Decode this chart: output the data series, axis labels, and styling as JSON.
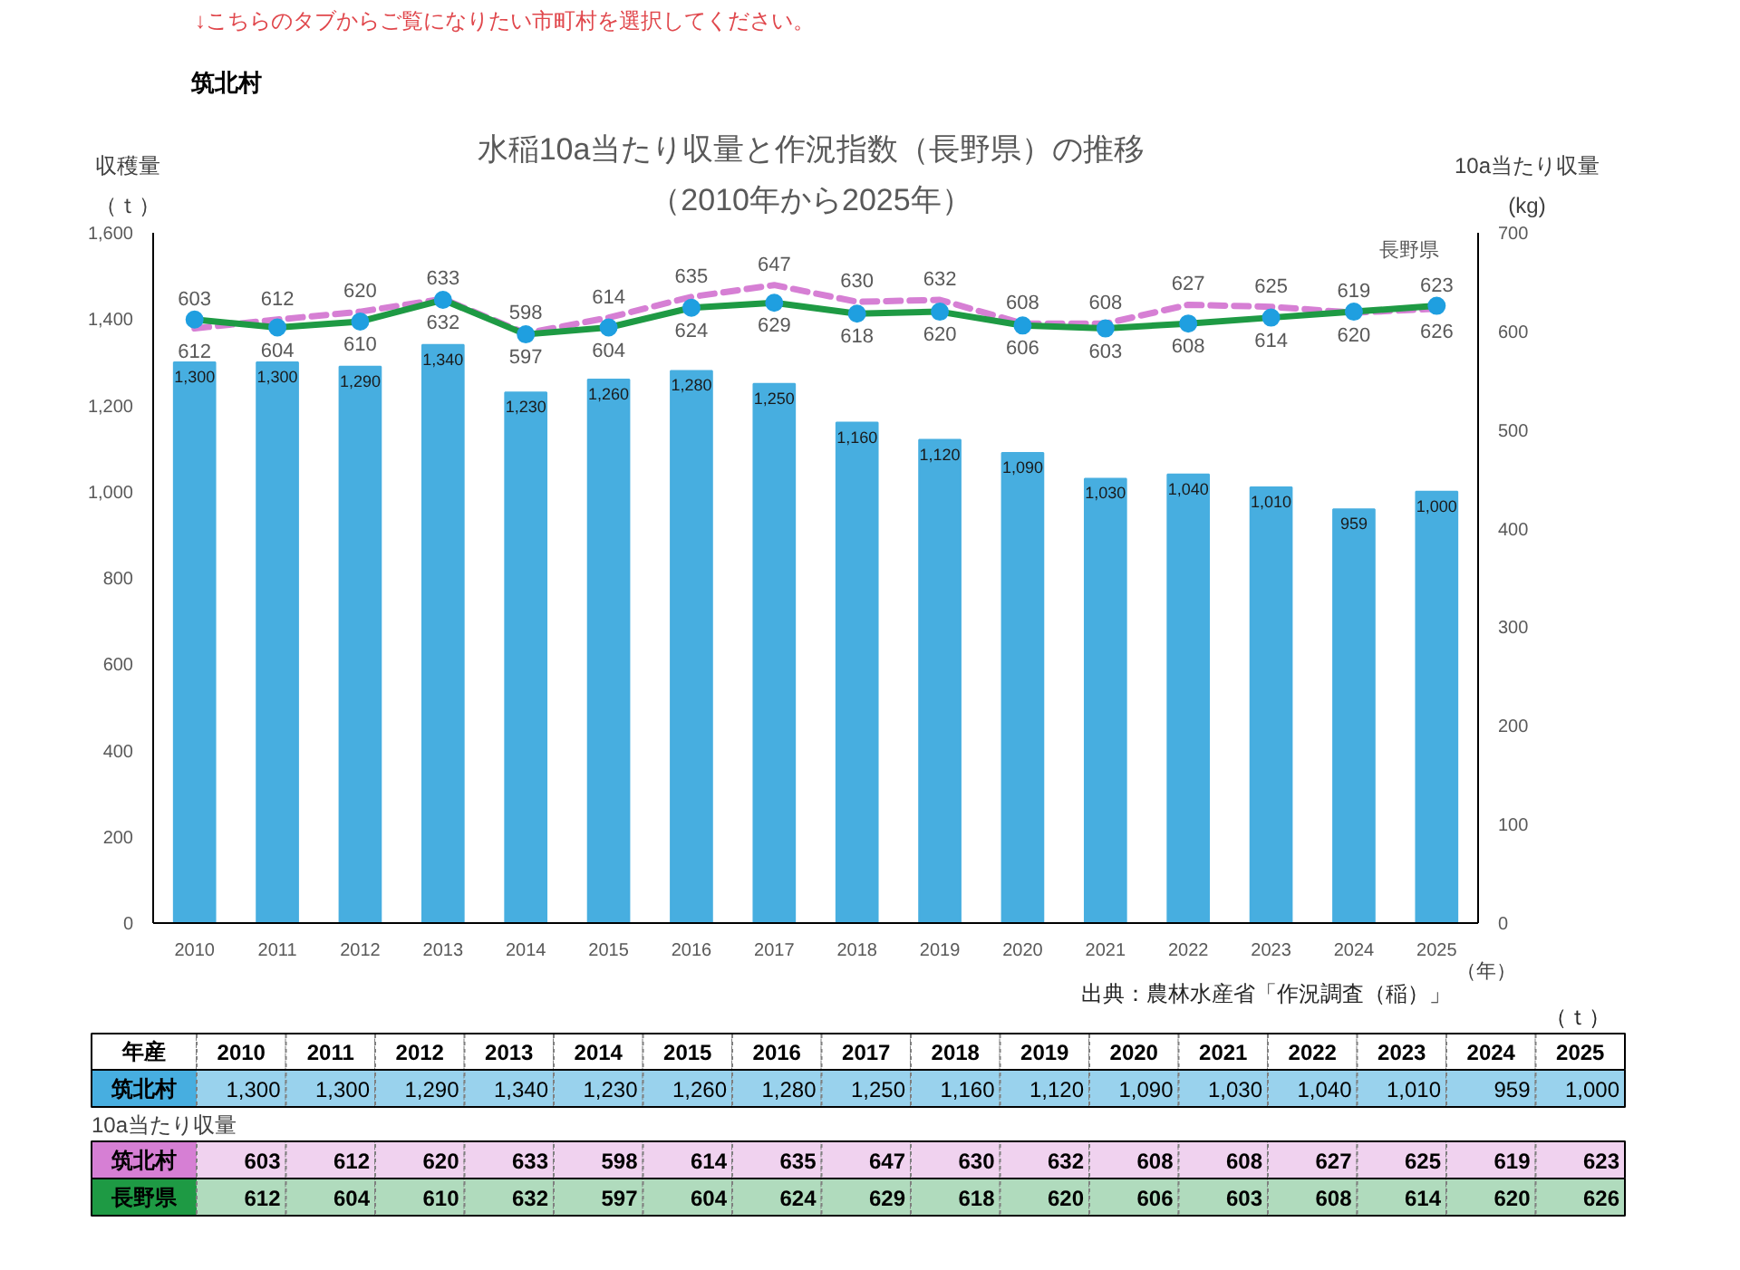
{
  "chart_data": {
    "type": "bar",
    "title": "水稲10a当たり収量と作況指数（長野県）の推移",
    "subtitle": "（2010年から2025年）",
    "xlabel": "（年）",
    "ylabel": "収穫量（ｔ）",
    "y2label": "10a当たり収量\n(kg)",
    "annotations": [
      "↓こちらのタブからご覧になりたい市町村を選択してください。",
      "筑北村",
      "出典：農林水産省「作況調査（稲）」",
      "（ｔ）",
      "年産",
      "10a当たり収量",
      "長野県"
    ],
    "categories": [
      "2010",
      "2011",
      "2012",
      "2013",
      "2014",
      "2015",
      "2016",
      "2017",
      "2018",
      "2019",
      "2020",
      "2021",
      "2022",
      "2023",
      "2024",
      "2025"
    ],
    "series": [
      {
        "name": "筑北村",
        "color": "#47aee0",
        "values": [
          1300,
          1300,
          1290,
          1340,
          1230,
          1260,
          1280,
          1250,
          1160,
          1120,
          1090,
          1030,
          1040,
          1010,
          959,
          1000
        ],
        "value_labels": [
          "1,300",
          "1,300",
          "1,290",
          "1,340",
          "1,230",
          "1,260",
          "1,280",
          "1,250",
          "1,160",
          "1,120",
          "1,090",
          "1,030",
          "1,040",
          "1,010",
          "959",
          "1,000"
        ]
      },
      {
        "name": "筑北村",
        "type": "line",
        "axis": "y2",
        "color": "#d67fd4",
        "line_style": "dashed",
        "marker": "none",
        "values": [
          603,
          612,
          620,
          633,
          598,
          614,
          635,
          647,
          630,
          632,
          608,
          608,
          627,
          625,
          619,
          623
        ],
        "value_labels": [
          "603",
          "612",
          "620",
          "633",
          "598",
          "614",
          "635",
          "647",
          "630",
          "632",
          "608",
          "608",
          "627",
          "625",
          "619",
          "623"
        ]
      },
      {
        "name": "長野県",
        "type": "line",
        "axis": "y2",
        "color": "#1e9a44",
        "line_style": "solid",
        "marker": "circle",
        "colors": [
          "#1f9fe0",
          "#1f9fe0",
          "#1f9fe0",
          "#1f9fe0",
          "#1f9fe0",
          "#1f9fe0",
          "#1f9fe0",
          "#1f9fe0",
          "#1f9fe0",
          "#1f9fe0",
          "#1f9fe0",
          "#1f9fe0",
          "#1f9fe0",
          "#1f9fe0",
          "#1f9fe0",
          "#1f9fe0"
        ],
        "values": [
          612,
          604,
          610,
          632,
          597,
          604,
          624,
          629,
          618,
          620,
          606,
          603,
          608,
          614,
          620,
          626
        ],
        "value_labels": [
          "612",
          "604",
          "610",
          "632",
          "597",
          "604",
          "624",
          "629",
          "618",
          "620",
          "606",
          "603",
          "608",
          "614",
          "620",
          "626"
        ]
      }
    ],
    "ylim": [
      0,
      1600
    ],
    "yticks": [
      0,
      200,
      400,
      600,
      800,
      {
        "value": 1000,
        "label": "1,000"
      },
      {
        "value": 1200,
        "label": "1,200"
      },
      {
        "value": 1400,
        "label": "1,400"
      },
      {
        "value": 1600,
        "label": "1,600"
      }
    ],
    "y2lim": [
      0,
      700
    ],
    "y2ticks": [
      0,
      100,
      200,
      300,
      400,
      500,
      600,
      700
    ]
  }
}
